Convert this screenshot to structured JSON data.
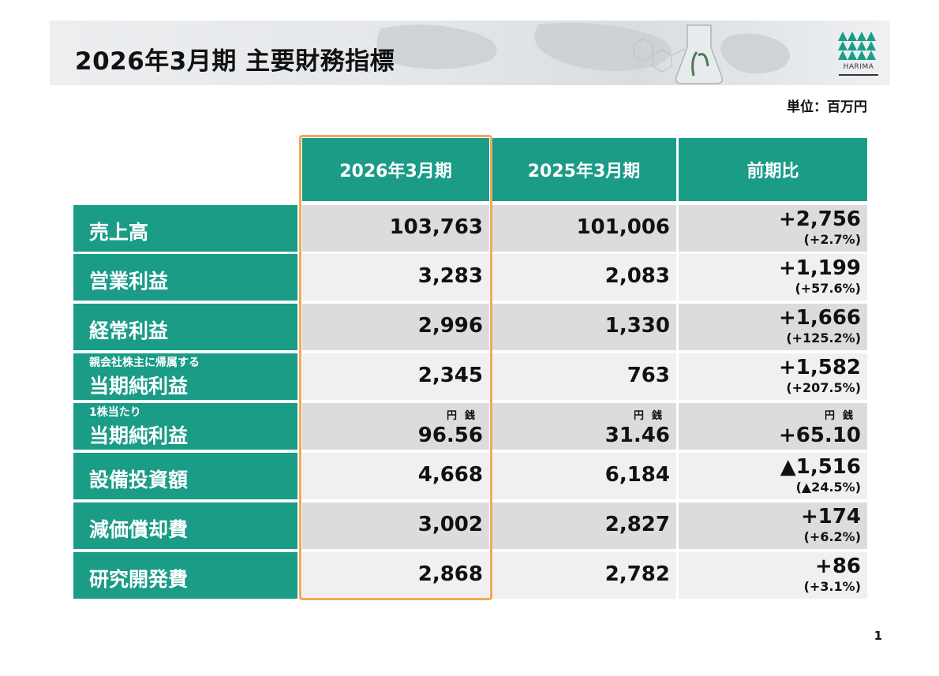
{
  "header": {
    "title": "2026年3月期 主要財務指標",
    "logo_text": "HARIMA"
  },
  "unit_label": "単位：百万円",
  "columns": [
    "2026年3月期",
    "2025年3月期",
    "前期比"
  ],
  "rows": [
    {
      "label": "売上高",
      "sublabel": "",
      "current": "103,763",
      "previous": "101,006",
      "diff": "+2,756",
      "pct": "(+2.7%)",
      "unit_note": ""
    },
    {
      "label": "営業利益",
      "sublabel": "",
      "current": "3,283",
      "previous": "2,083",
      "diff": "+1,199",
      "pct": "(+57.6%)",
      "unit_note": ""
    },
    {
      "label": "経常利益",
      "sublabel": "",
      "current": "2,996",
      "previous": "1,330",
      "diff": "+1,666",
      "pct": "(+125.2%)",
      "unit_note": ""
    },
    {
      "label": "当期純利益",
      "sublabel": "親会社株主に帰属する",
      "current": "2,345",
      "previous": "763",
      "diff": "+1,582",
      "pct": "(+207.5%)",
      "unit_note": ""
    },
    {
      "label": "当期純利益",
      "sublabel": "1株当たり",
      "current": "96.56",
      "previous": "31.46",
      "diff": "+65.10",
      "pct": "",
      "unit_note": "円銭"
    },
    {
      "label": "設備投資額",
      "sublabel": "",
      "current": "4,668",
      "previous": "6,184",
      "diff": "▲1,516",
      "pct": "(▲24.5%)",
      "unit_note": ""
    },
    {
      "label": "減価償却費",
      "sublabel": "",
      "current": "3,002",
      "previous": "2,827",
      "diff": "+174",
      "pct": "(+6.2%)",
      "unit_note": ""
    },
    {
      "label": "研究開発費",
      "sublabel": "",
      "current": "2,868",
      "previous": "2,782",
      "diff": "+86",
      "pct": "(+3.1%)",
      "unit_note": ""
    }
  ],
  "page_number": "1",
  "colors": {
    "header_green": "#1a9c87",
    "highlight_orange": "#f0a95b",
    "row_gray": "#dcdcdc",
    "row_light": "#f0f0f0"
  }
}
